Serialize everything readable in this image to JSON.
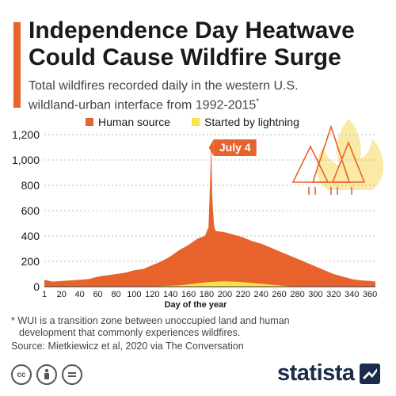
{
  "header": {
    "title_line1": "Independence Day Heatwave",
    "title_line2": "Could Cause Wildfire Surge",
    "subtitle_line1": "Total wildfires recorded daily in the western U.S.",
    "subtitle_line2": "wildland-urban interface from 1992-2015",
    "subtitle_marker": "*"
  },
  "footer": {
    "footnote_line1": "* WUI is a transition zone between unoccupied land and human",
    "footnote_line2": "development that commonly experiences wildfires.",
    "source": "Source: Mietkiewicz et al, 2020 via The Conversation",
    "brand": "statista"
  },
  "colors": {
    "accent": "#e8632b",
    "human": "#e8632b",
    "lightning": "#fde047",
    "flame": "#fbe9a6",
    "brand": "#1c2b4a"
  },
  "chart_data": {
    "type": "area",
    "xlabel": "Day of the year",
    "ylabel": "",
    "xlim": [
      1,
      366
    ],
    "ylim": [
      0,
      1200
    ],
    "x_ticks": [
      1,
      20,
      40,
      60,
      80,
      100,
      120,
      140,
      160,
      180,
      200,
      220,
      240,
      260,
      280,
      300,
      320,
      340,
      360
    ],
    "y_ticks": [
      0,
      200,
      400,
      600,
      800,
      1000,
      1200
    ],
    "y_tick_labels": [
      "0",
      "200",
      "400",
      "600",
      "800",
      "1,000",
      "1,200"
    ],
    "legend": {
      "placement": "top",
      "entries": [
        "Human source",
        "Started by lightning"
      ]
    },
    "annotation": {
      "text": "July 4",
      "x": 185,
      "y": 1150
    },
    "series": [
      {
        "name": "Human source",
        "x": [
          1,
          10,
          20,
          30,
          40,
          50,
          60,
          70,
          80,
          90,
          100,
          110,
          120,
          130,
          140,
          150,
          160,
          170,
          178,
          182,
          184,
          185,
          186,
          188,
          190,
          200,
          210,
          220,
          230,
          240,
          250,
          260,
          270,
          280,
          290,
          300,
          310,
          320,
          330,
          340,
          350,
          360,
          366
        ],
        "values": [
          55,
          40,
          45,
          50,
          55,
          60,
          80,
          90,
          100,
          110,
          130,
          140,
          170,
          200,
          240,
          290,
          330,
          380,
          400,
          470,
          900,
          1150,
          720,
          480,
          440,
          430,
          410,
          390,
          360,
          340,
          310,
          280,
          250,
          220,
          190,
          160,
          130,
          100,
          80,
          60,
          50,
          45,
          40
        ]
      },
      {
        "name": "Started by lightning",
        "x": [
          1,
          100,
          130,
          150,
          160,
          170,
          180,
          190,
          200,
          210,
          220,
          230,
          240,
          250,
          260,
          270,
          290,
          366
        ],
        "values": [
          0,
          0,
          5,
          10,
          18,
          28,
          35,
          40,
          42,
          40,
          36,
          30,
          24,
          16,
          10,
          5,
          0,
          0
        ]
      }
    ]
  }
}
